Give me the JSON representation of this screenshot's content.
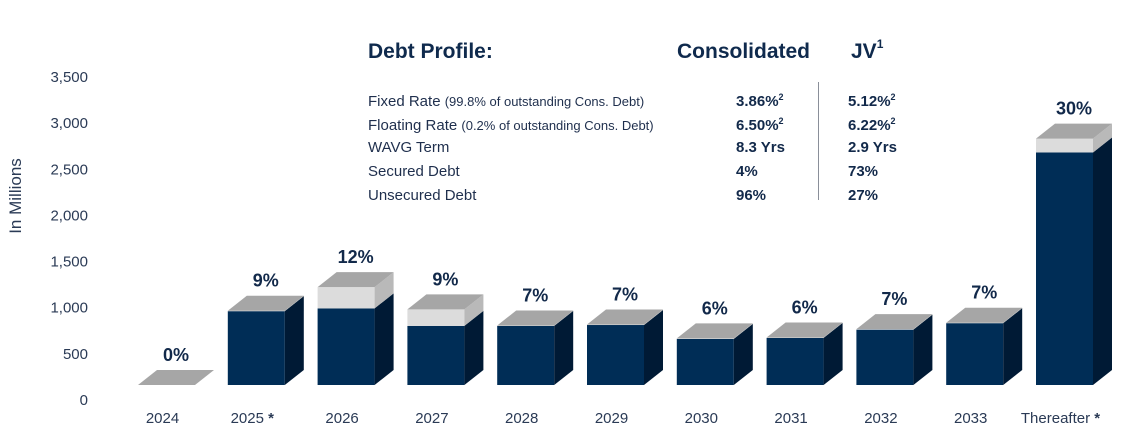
{
  "header": {
    "title": "Debt Profile:",
    "col_consolidated": "Consolidated",
    "col_jv": "JV",
    "col_jv_sup": "1"
  },
  "profile_rows": [
    {
      "label": "Fixed Rate",
      "note": "(99.8% of outstanding Cons. Debt)",
      "cons": "3.86%",
      "cons_sup": "2",
      "jv": "5.12%",
      "jv_sup": "2"
    },
    {
      "label": "Floating Rate",
      "note": "(0.2% of outstanding Cons. Debt)",
      "cons": "6.50%",
      "cons_sup": "2",
      "jv": "6.22%",
      "jv_sup": "2"
    },
    {
      "label": "WAVG Term",
      "note": "",
      "cons": "8.3 Yrs",
      "cons_sup": "",
      "jv": "2.9 Yrs",
      "jv_sup": ""
    },
    {
      "label": "Secured Debt",
      "note": "",
      "cons": "4%",
      "cons_sup": "",
      "jv": "73%",
      "jv_sup": ""
    },
    {
      "label": "Unsecured Debt",
      "note": "",
      "cons": "96%",
      "cons_sup": "",
      "jv": "27%",
      "jv_sup": ""
    }
  ],
  "colors": {
    "front_dark": "#002d56",
    "side_dark": "#001a35",
    "front_light": "#dcdcdc",
    "side_light": "#b9b9b9",
    "top": "#a6a6a6",
    "text": "#12294a"
  },
  "chart_data": {
    "type": "bar",
    "stacked": true,
    "ylabel": "In Millions",
    "ylim": [
      0,
      3500
    ],
    "yticks": [
      "0",
      "500",
      "1,000",
      "1,500",
      "2,000",
      "2,500",
      "3,000",
      "3,500"
    ],
    "ytick_values": [
      0,
      500,
      1000,
      1500,
      2000,
      2500,
      3000,
      3500
    ],
    "categories": [
      "2024",
      "2025",
      "2026",
      "2027",
      "2028",
      "2029",
      "2030",
      "2031",
      "2032",
      "2033",
      "Thereafter"
    ],
    "category_marks": [
      "",
      "*",
      "",
      "",
      "",
      "",
      "",
      "",
      "",
      "",
      "*"
    ],
    "series": [
      {
        "values": [
          0,
          800,
          830,
          640,
          640,
          650,
          500,
          510,
          600,
          670,
          2520
        ]
      },
      {
        "values": [
          0,
          5,
          230,
          180,
          5,
          5,
          5,
          5,
          5,
          5,
          150
        ]
      }
    ],
    "annotations": [
      "0%",
      "9%",
      "12%",
      "9%",
      "7%",
      "7%",
      "6%",
      "6%",
      "7%",
      "7%",
      "30%"
    ]
  }
}
